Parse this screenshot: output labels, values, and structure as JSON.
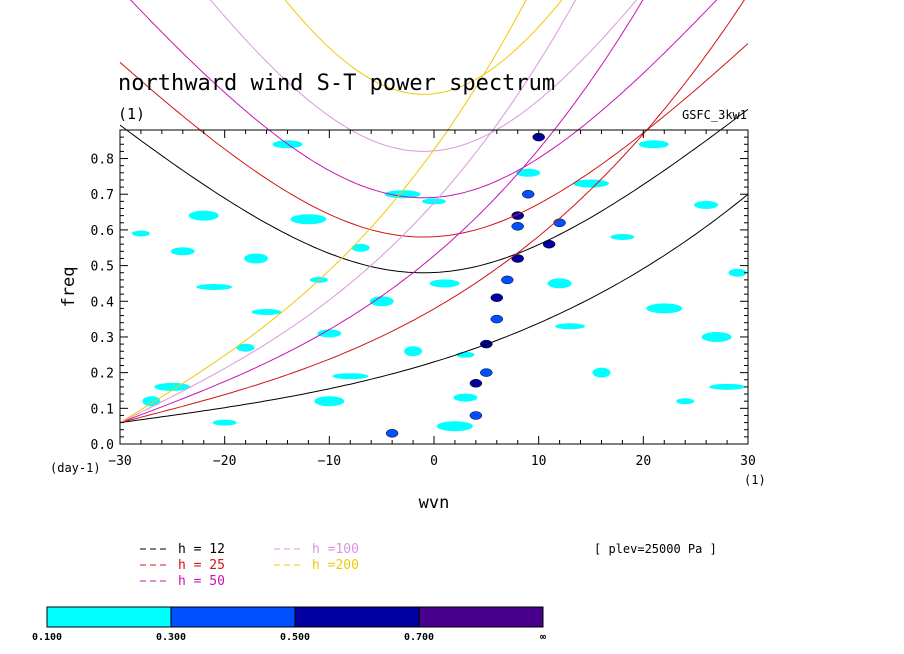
{
  "chart_data": {
    "type": "heatmap",
    "title": "northward wind S-T power spectrum",
    "subtitle_left": "(1)",
    "subtitle_right": "GSFC_3kw1",
    "xlabel": "wvn",
    "ylabel": "freq",
    "x_unit": "(1)",
    "y_unit": "(day-1)",
    "xlim": [
      -30,
      30
    ],
    "ylim": [
      0,
      0.88
    ],
    "x_ticks": [
      -30,
      -20,
      -10,
      0,
      10,
      20,
      30
    ],
    "x_tick_labels": [
      "−30",
      "−20",
      "−10",
      "0",
      "10",
      "20",
      "30"
    ],
    "y_ticks": [
      0.0,
      0.1,
      0.2,
      0.3,
      0.4,
      0.5,
      0.6,
      0.7,
      0.8
    ],
    "y_tick_labels": [
      "0.0",
      "0.1",
      "0.2",
      "0.3",
      "0.4",
      "0.5",
      "0.6",
      "0.7",
      "0.8"
    ],
    "annotation": "[ plev=25000 Pa ]",
    "dispersion_curves": [
      {
        "label": "h = 12",
        "color": "#000000",
        "min_freq": 0.48
      },
      {
        "label": "h = 25",
        "color": "#d21414",
        "min_freq": 0.58
      },
      {
        "label": "h = 50",
        "color": "#c814b4",
        "min_freq": 0.69
      },
      {
        "label": "h =100",
        "color": "#dc96dc",
        "min_freq": 0.82
      },
      {
        "label": "h =200",
        "color": "#f0c80a",
        "min_freq": 0.98
      }
    ],
    "colorbar": {
      "levels": [
        "0.100",
        "0.300",
        "0.500",
        "0.700",
        "∞"
      ],
      "colors": [
        "#00ffff",
        "#0050ff",
        "#0000a0",
        "#46008c"
      ]
    },
    "power_regions": [
      {
        "wvn": -28,
        "freq": 0.59,
        "level": 0
      },
      {
        "wvn": -24,
        "freq": 0.54,
        "level": 0
      },
      {
        "wvn": -22,
        "freq": 0.64,
        "level": 0
      },
      {
        "wvn": -21,
        "freq": 0.44,
        "level": 0
      },
      {
        "wvn": -18,
        "freq": 0.27,
        "level": 0
      },
      {
        "wvn": -17,
        "freq": 0.52,
        "level": 0
      },
      {
        "wvn": -16,
        "freq": 0.37,
        "level": 0
      },
      {
        "wvn": -25,
        "freq": 0.16,
        "level": 0
      },
      {
        "wvn": -27,
        "freq": 0.12,
        "level": 0
      },
      {
        "wvn": -20,
        "freq": 0.06,
        "level": 0
      },
      {
        "wvn": -14,
        "freq": 0.84,
        "level": 0
      },
      {
        "wvn": -12,
        "freq": 0.63,
        "level": 0
      },
      {
        "wvn": -11,
        "freq": 0.46,
        "level": 0
      },
      {
        "wvn": -10,
        "freq": 0.31,
        "level": 0
      },
      {
        "wvn": -10,
        "freq": 0.12,
        "level": 0
      },
      {
        "wvn": -8,
        "freq": 0.19,
        "level": 0
      },
      {
        "wvn": -7,
        "freq": 0.55,
        "level": 0
      },
      {
        "wvn": -5,
        "freq": 0.4,
        "level": 0
      },
      {
        "wvn": -4,
        "freq": 0.03,
        "level": 1
      },
      {
        "wvn": -3,
        "freq": 0.7,
        "level": 0
      },
      {
        "wvn": -2,
        "freq": 0.26,
        "level": 0
      },
      {
        "wvn": 0,
        "freq": 0.68,
        "level": 0
      },
      {
        "wvn": 1,
        "freq": 0.45,
        "level": 0
      },
      {
        "wvn": 2,
        "freq": 0.05,
        "level": 0
      },
      {
        "wvn": 3,
        "freq": 0.25,
        "level": 0
      },
      {
        "wvn": 3,
        "freq": 0.13,
        "level": 0
      },
      {
        "wvn": 4,
        "freq": 0.08,
        "level": 1
      },
      {
        "wvn": 4,
        "freq": 0.17,
        "level": 2
      },
      {
        "wvn": 5,
        "freq": 0.2,
        "level": 1
      },
      {
        "wvn": 5,
        "freq": 0.28,
        "level": 2
      },
      {
        "wvn": 6,
        "freq": 0.35,
        "level": 1
      },
      {
        "wvn": 6,
        "freq": 0.41,
        "level": 2
      },
      {
        "wvn": 7,
        "freq": 0.46,
        "level": 1
      },
      {
        "wvn": 8,
        "freq": 0.52,
        "level": 2
      },
      {
        "wvn": 8,
        "freq": 0.61,
        "level": 1
      },
      {
        "wvn": 8,
        "freq": 0.64,
        "level": 2
      },
      {
        "wvn": 9,
        "freq": 0.7,
        "level": 1
      },
      {
        "wvn": 9,
        "freq": 0.76,
        "level": 0
      },
      {
        "wvn": 10,
        "freq": 0.86,
        "level": 2
      },
      {
        "wvn": 11,
        "freq": 0.56,
        "level": 2
      },
      {
        "wvn": 12,
        "freq": 0.62,
        "level": 1
      },
      {
        "wvn": 12,
        "freq": 0.45,
        "level": 0
      },
      {
        "wvn": 13,
        "freq": 0.33,
        "level": 0
      },
      {
        "wvn": 15,
        "freq": 0.73,
        "level": 0
      },
      {
        "wvn": 16,
        "freq": 0.2,
        "level": 0
      },
      {
        "wvn": 18,
        "freq": 0.58,
        "level": 0
      },
      {
        "wvn": 21,
        "freq": 0.84,
        "level": 0
      },
      {
        "wvn": 22,
        "freq": 0.38,
        "level": 0
      },
      {
        "wvn": 24,
        "freq": 0.12,
        "level": 0
      },
      {
        "wvn": 26,
        "freq": 0.67,
        "level": 0
      },
      {
        "wvn": 27,
        "freq": 0.3,
        "level": 0
      },
      {
        "wvn": 28,
        "freq": 0.16,
        "level": 0
      },
      {
        "wvn": 29,
        "freq": 0.48,
        "level": 0
      }
    ]
  }
}
